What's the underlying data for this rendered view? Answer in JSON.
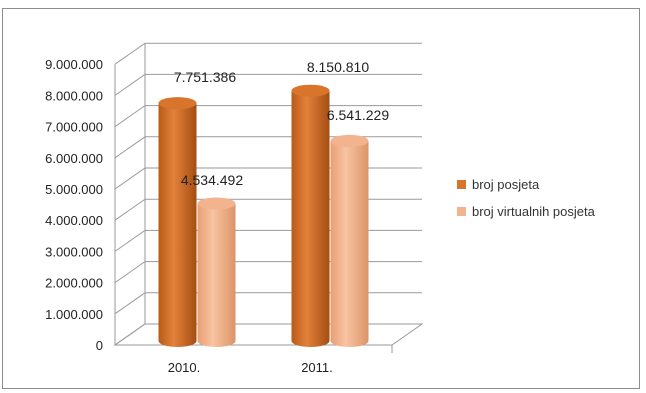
{
  "chart_data": {
    "type": "bar",
    "style": "3d-cylinder",
    "categories": [
      "2010.",
      "2011."
    ],
    "series": [
      {
        "name": "broj posjeta",
        "values": [
          7751386,
          8150810
        ],
        "labels": [
          "7.751.386",
          "8.150.810"
        ],
        "color": "#d8742c"
      },
      {
        "name": "broj virtualnih posjeta",
        "values": [
          4534492,
          6541229
        ],
        "labels": [
          "4.534.492",
          "6.541.229"
        ],
        "color": "#f2b38e"
      }
    ],
    "yticks": [
      "0",
      "1.000.000",
      "2.000.000",
      "3.000.000",
      "4.000.000",
      "5.000.000",
      "6.000.000",
      "7.000.000",
      "8.000.000",
      "9.000.000"
    ],
    "ylim": [
      0,
      9000000
    ],
    "grid": true,
    "legend_position": "right"
  }
}
